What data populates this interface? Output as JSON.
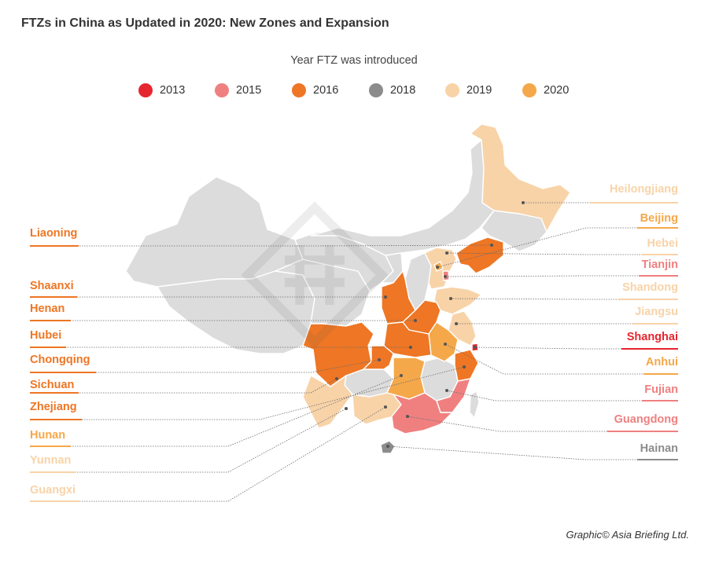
{
  "title": "FTZs in China as Updated in 2020: New Zones and Expansion",
  "legend": {
    "title": "Year FTZ was introduced",
    "items": [
      {
        "year": "2013",
        "color": "#e5262f"
      },
      {
        "year": "2015",
        "color": "#f08080"
      },
      {
        "year": "2016",
        "color": "#ee7624"
      },
      {
        "year": "2018",
        "color": "#8c8c8c"
      },
      {
        "year": "2019",
        "color": "#f8d3a8"
      },
      {
        "year": "2020",
        "color": "#f5a84a"
      }
    ]
  },
  "colors": {
    "no_ftz": "#dcdcdc",
    "leader_line": "#6b6b6b",
    "province_border": "#ffffff"
  },
  "provinces_left": [
    {
      "name": "Liaoning",
      "year": "2016",
      "color": "#ee7624"
    },
    {
      "name": "Shaanxi",
      "year": "2016",
      "color": "#ee7624"
    },
    {
      "name": "Henan",
      "year": "2016",
      "color": "#ee7624"
    },
    {
      "name": "Hubei",
      "year": "2016",
      "color": "#ee7624"
    },
    {
      "name": "Chongqing",
      "year": "2016",
      "color": "#ee7624"
    },
    {
      "name": "Sichuan",
      "year": "2016",
      "color": "#ee7624"
    },
    {
      "name": "Zhejiang",
      "year": "2016",
      "color": "#ee7624"
    },
    {
      "name": "Hunan",
      "year": "2020",
      "color": "#f5a84a"
    },
    {
      "name": "Yunnan",
      "year": "2019",
      "color": "#f8d3a8"
    },
    {
      "name": "Guangxi",
      "year": "2019",
      "color": "#f8d3a8"
    }
  ],
  "provinces_right": [
    {
      "name": "Heilongjiang",
      "year": "2019",
      "color": "#f8d3a8"
    },
    {
      "name": "Beijing",
      "year": "2020",
      "color": "#f5a84a"
    },
    {
      "name": "Hebei",
      "year": "2019",
      "color": "#f8d3a8"
    },
    {
      "name": "Tianjin",
      "year": "2015",
      "color": "#f08080"
    },
    {
      "name": "Shandong",
      "year": "2019",
      "color": "#f8d3a8"
    },
    {
      "name": "Jiangsu",
      "year": "2019",
      "color": "#f8d3a8"
    },
    {
      "name": "Shanghai",
      "year": "2013",
      "color": "#e5262f"
    },
    {
      "name": "Anhui",
      "year": "2020",
      "color": "#f5a84a"
    },
    {
      "name": "Fujian",
      "year": "2015",
      "color": "#f08080"
    },
    {
      "name": "Guangdong",
      "year": "2015",
      "color": "#f08080"
    },
    {
      "name": "Hainan",
      "year": "2018",
      "color": "#8c8c8c"
    }
  ],
  "credit": "Graphic© Asia Briefing Ltd."
}
